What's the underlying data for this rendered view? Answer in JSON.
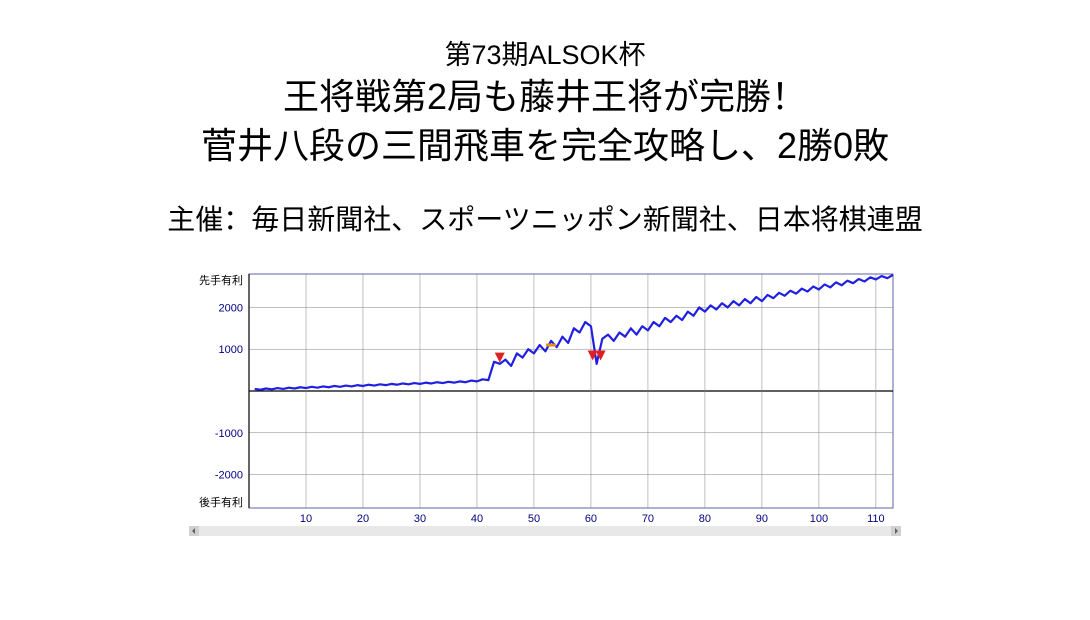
{
  "header": {
    "subtitle_top": "第73期ALSOK杯",
    "title_line1": "王将戦第2局も藤井王将が完勝！",
    "title_line2": "菅井八段の三間飛車を完全攻略し、2勝0敗",
    "sponsor": "主催：毎日新聞社、スポーツニッポン新聞社、日本将棋連盟"
  },
  "chart": {
    "type": "line",
    "label_top": "先手有利",
    "label_bottom": "後手有利",
    "y_ticks": [
      2000,
      1000,
      -1000,
      -2000
    ],
    "x_ticks": [
      10,
      20,
      30,
      40,
      50,
      60,
      70,
      80,
      90,
      100,
      110
    ],
    "xlim": [
      0,
      113
    ],
    "ylim": [
      -2800,
      2800
    ],
    "line_color": "#2020e0",
    "line_width": 2.2,
    "grid_color": "#808080",
    "axis_color": "#000000",
    "border_color": "#6060a0",
    "tick_font_color": "#000080",
    "tick_font_size": 11,
    "label_font_size": 11,
    "gridline_style": "solid",
    "gridline_width": 0.5,
    "background_color": "#ffffff",
    "series": [
      [
        1,
        50
      ],
      [
        2,
        30
      ],
      [
        3,
        60
      ],
      [
        4,
        40
      ],
      [
        5,
        70
      ],
      [
        6,
        50
      ],
      [
        7,
        80
      ],
      [
        8,
        60
      ],
      [
        9,
        90
      ],
      [
        10,
        70
      ],
      [
        11,
        100
      ],
      [
        12,
        80
      ],
      [
        13,
        110
      ],
      [
        14,
        90
      ],
      [
        15,
        120
      ],
      [
        16,
        100
      ],
      [
        17,
        130
      ],
      [
        18,
        110
      ],
      [
        19,
        140
      ],
      [
        20,
        120
      ],
      [
        21,
        150
      ],
      [
        22,
        130
      ],
      [
        23,
        160
      ],
      [
        24,
        140
      ],
      [
        25,
        170
      ],
      [
        26,
        150
      ],
      [
        27,
        180
      ],
      [
        28,
        160
      ],
      [
        29,
        190
      ],
      [
        30,
        170
      ],
      [
        31,
        200
      ],
      [
        32,
        180
      ],
      [
        33,
        210
      ],
      [
        34,
        190
      ],
      [
        35,
        220
      ],
      [
        36,
        200
      ],
      [
        37,
        230
      ],
      [
        38,
        210
      ],
      [
        39,
        250
      ],
      [
        40,
        230
      ],
      [
        41,
        280
      ],
      [
        42,
        260
      ],
      [
        43,
        700
      ],
      [
        44,
        650
      ],
      [
        45,
        750
      ],
      [
        46,
        600
      ],
      [
        47,
        900
      ],
      [
        48,
        800
      ],
      [
        49,
        1000
      ],
      [
        50,
        900
      ],
      [
        51,
        1100
      ],
      [
        52,
        950
      ],
      [
        53,
        1200
      ],
      [
        54,
        1050
      ],
      [
        55,
        1300
      ],
      [
        56,
        1150
      ],
      [
        57,
        1500
      ],
      [
        58,
        1400
      ],
      [
        59,
        1650
      ],
      [
        60,
        1550
      ],
      [
        61,
        650
      ],
      [
        62,
        1250
      ],
      [
        63,
        1350
      ],
      [
        64,
        1200
      ],
      [
        65,
        1400
      ],
      [
        66,
        1300
      ],
      [
        67,
        1500
      ],
      [
        68,
        1350
      ],
      [
        69,
        1550
      ],
      [
        70,
        1450
      ],
      [
        71,
        1650
      ],
      [
        72,
        1550
      ],
      [
        73,
        1750
      ],
      [
        74,
        1650
      ],
      [
        75,
        1800
      ],
      [
        76,
        1700
      ],
      [
        77,
        1900
      ],
      [
        78,
        1800
      ],
      [
        79,
        2000
      ],
      [
        80,
        1900
      ],
      [
        81,
        2050
      ],
      [
        82,
        1950
      ],
      [
        83,
        2100
      ],
      [
        84,
        2000
      ],
      [
        85,
        2150
      ],
      [
        86,
        2050
      ],
      [
        87,
        2200
      ],
      [
        88,
        2100
      ],
      [
        89,
        2250
      ],
      [
        90,
        2150
      ],
      [
        91,
        2300
      ],
      [
        92,
        2220
      ],
      [
        93,
        2350
      ],
      [
        94,
        2280
      ],
      [
        95,
        2400
      ],
      [
        96,
        2330
      ],
      [
        97,
        2450
      ],
      [
        98,
        2380
      ],
      [
        99,
        2500
      ],
      [
        100,
        2430
      ],
      [
        101,
        2550
      ],
      [
        102,
        2480
      ],
      [
        103,
        2600
      ],
      [
        104,
        2530
      ],
      [
        105,
        2640
      ],
      [
        106,
        2580
      ],
      [
        107,
        2680
      ],
      [
        108,
        2620
      ],
      [
        109,
        2720
      ],
      [
        110,
        2670
      ],
      [
        111,
        2750
      ],
      [
        112,
        2700
      ],
      [
        113,
        2780
      ]
    ],
    "markers": [
      {
        "x": 44,
        "y": 800,
        "color": "#e02020",
        "shape": "down-triangle"
      },
      {
        "x": 53,
        "y": 1100,
        "color": "#e09020",
        "shape": "dash"
      },
      {
        "x": 60.3,
        "y": 850,
        "color": "#e02020",
        "shape": "down-triangle"
      },
      {
        "x": 61.7,
        "y": 850,
        "color": "#e02020",
        "shape": "down-triangle"
      }
    ]
  }
}
